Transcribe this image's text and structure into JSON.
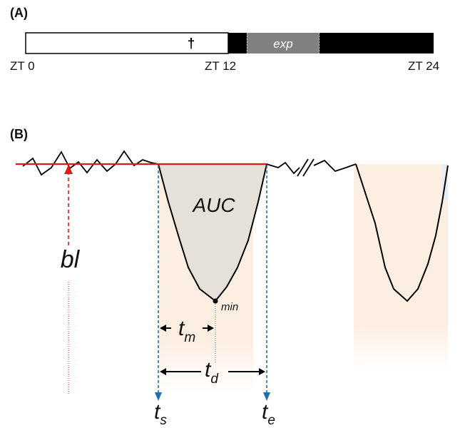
{
  "panel_a": {
    "label": "(A)",
    "dagger": "†",
    "exp_label": "exp",
    "zt_start": "ZT 0",
    "zt_mid": "ZT 12",
    "zt_end": "ZT 24"
  },
  "panel_b": {
    "label": "(B)",
    "auc": "AUC",
    "bl": "bl",
    "min": "min",
    "t_m": "t",
    "t_m_sub": "m",
    "t_d": "t",
    "t_d_sub": "d",
    "t_s": "t",
    "t_s_sub": "s",
    "t_e": "t",
    "t_e_sub": "e"
  },
  "colors": {
    "light_phase": "#ffffff",
    "dark_phase": "#000000",
    "exp_block": "#808080",
    "baseline": "#e8141b",
    "markers": "#1f6fb2",
    "auc_fill": "#e5e0d8",
    "window_fill": "#fdeee2"
  }
}
